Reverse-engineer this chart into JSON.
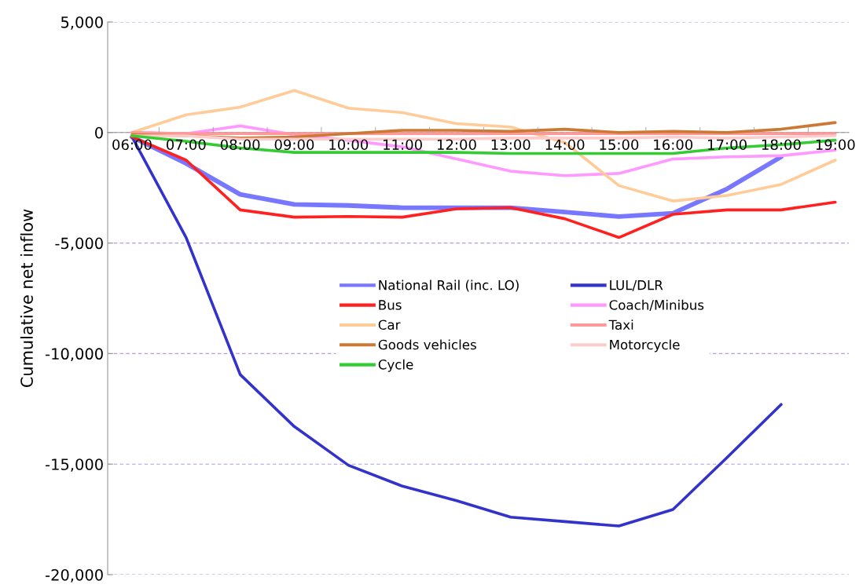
{
  "chart_data": {
    "type": "line",
    "ylabel": "Cumulative net inflow",
    "categories": [
      "06:00",
      "07:00",
      "08:00",
      "09:00",
      "10:00",
      "11:00",
      "12:00",
      "13:00",
      "14:00",
      "15:00",
      "16:00",
      "17:00",
      "18:00",
      "19:00"
    ],
    "series": [
      {
        "name": "National Rail (inc. LO)",
        "color": "#7777ff",
        "values": [
          -200,
          -1400,
          -2800,
          -3250,
          -3300,
          -3400,
          -3400,
          -3400,
          -3600,
          -3800,
          -3650,
          -2550,
          -1100,
          null
        ]
      },
      {
        "name": "LUL/DLR",
        "color": "#3333cc",
        "values": [
          -200,
          -4750,
          -10950,
          -13300,
          -15050,
          -16000,
          -16650,
          -17400,
          -17600,
          -17800,
          -17050,
          -14700,
          -12300,
          null
        ]
      },
      {
        "name": "Bus",
        "color": "#ff2020",
        "values": [
          -200,
          -1250,
          -3500,
          -3830,
          -3800,
          -3830,
          -3450,
          -3400,
          -3900,
          -4750,
          -3700,
          -3500,
          -3500,
          -3150
        ]
      },
      {
        "name": "Coach/Minibus",
        "color": "#ff99ff",
        "values": [
          0,
          -50,
          300,
          -100,
          -350,
          -650,
          -1200,
          -1750,
          -1950,
          -1850,
          -1200,
          -1100,
          -1050,
          -800
        ]
      },
      {
        "name": "Car",
        "color": "#ffcc99",
        "values": [
          0,
          800,
          1150,
          1900,
          1100,
          900,
          400,
          250,
          -450,
          -2400,
          -3100,
          -2850,
          -2350,
          -1250
        ]
      },
      {
        "name": "Taxi",
        "color": "#ff9999",
        "values": [
          0,
          -50,
          -50,
          -50,
          -50,
          -50,
          -50,
          -50,
          -50,
          -50,
          -50,
          -50,
          -50,
          -50
        ]
      },
      {
        "name": "Goods vehicles",
        "color": "#cc7a33",
        "values": [
          -100,
          -150,
          -250,
          -200,
          -50,
          100,
          100,
          50,
          150,
          0,
          50,
          0,
          150,
          450
        ]
      },
      {
        "name": "Motorcycle",
        "color": "#ffcccc",
        "values": [
          -150,
          -150,
          -300,
          -300,
          -300,
          -300,
          -300,
          -250,
          -250,
          -250,
          -200,
          -250,
          -200,
          -150
        ]
      },
      {
        "name": "Cycle",
        "color": "#33cc33",
        "values": [
          -150,
          -400,
          -700,
          -900,
          -900,
          -900,
          -900,
          -950,
          -950,
          -950,
          -950,
          -700,
          -550,
          -350
        ]
      }
    ],
    "ylim": [
      -20000,
      5000
    ],
    "yticks": [
      {
        "value": -20000,
        "label": "-20,000"
      },
      {
        "value": -15000,
        "label": "-15,000"
      },
      {
        "value": -10000,
        "label": "-10,000"
      },
      {
        "value": -5000,
        "label": "-5,000"
      },
      {
        "value": 0,
        "label": "0"
      },
      {
        "value": 5000,
        "label": "5,000"
      }
    ],
    "grid": "y",
    "legend": "center",
    "line_style": "solid",
    "marker": "none"
  }
}
